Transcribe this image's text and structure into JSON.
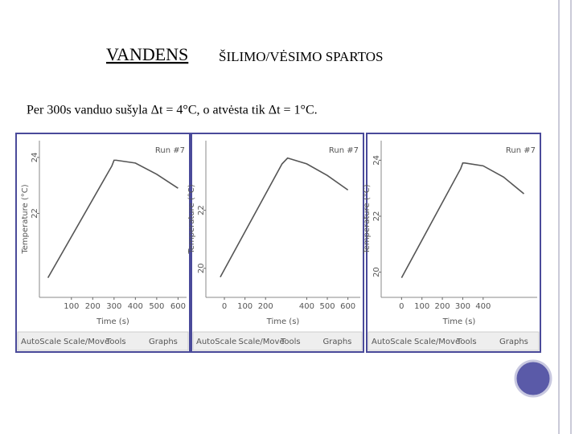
{
  "title_main": "VANDENS",
  "title_rest": "ŠILIMO/VĖSIMO SPARTOS",
  "text": "Per 300s vanduo sušyla Δt = 4°C, o atvėsta tik Δt = 1°C.",
  "chart_data": [
    {
      "type": "line",
      "run": "Run #7",
      "y_label": "Temperature (°C)",
      "x_label": "Time (s)",
      "toolbar": [
        "AutoScale",
        "Scale/Move",
        "Tools",
        "Graphs"
      ],
      "xlim": [
        -50,
        640
      ],
      "xticks": [
        100,
        200,
        300,
        400,
        500,
        600
      ],
      "ylim": [
        19,
        24.6
      ],
      "yticks": [
        22,
        24
      ],
      "x": [
        -10,
        290,
        300,
        310,
        400,
        500,
        600
      ],
      "series": [
        {
          "name": "Run #7",
          "color": "#555555",
          "values": [
            19.7,
            23.7,
            23.9,
            23.9,
            23.8,
            23.4,
            22.9
          ]
        }
      ]
    },
    {
      "type": "line",
      "run": "Run #7",
      "y_label": "Temperature (°C)",
      "x_label": "Time (s)",
      "toolbar": [
        "AutoScale",
        "Scale/Move",
        "Tools",
        "Graphs"
      ],
      "xlim": [
        -90,
        660
      ],
      "xticks": [
        0,
        100,
        200,
        400,
        500,
        600
      ],
      "ylim": [
        19,
        24.4
      ],
      "yticks": [
        20,
        22
      ],
      "x": [
        -20,
        280,
        307,
        400,
        500,
        600
      ],
      "series": [
        {
          "name": "Run #7",
          "color": "#555555",
          "values": [
            19.7,
            23.6,
            23.8,
            23.6,
            23.2,
            22.7
          ]
        }
      ]
    },
    {
      "type": "line",
      "run": "Run #7",
      "y_label": "Temperature (°C)",
      "x_label": "Time (s)",
      "toolbar": [
        "AutoScale",
        "Scale/Move",
        "Tools",
        "Graphs"
      ],
      "xlim": [
        -100,
        665
      ],
      "xticks": [
        0,
        100,
        200,
        300,
        400
      ],
      "ylim": [
        19.1,
        24.7
      ],
      "yticks": [
        20,
        22,
        24
      ],
      "x": [
        0,
        290,
        300,
        310,
        400,
        500,
        600
      ],
      "series": [
        {
          "name": "Run #7",
          "color": "#555555",
          "values": [
            19.8,
            23.7,
            23.9,
            23.9,
            23.8,
            23.4,
            22.8
          ]
        }
      ]
    }
  ]
}
